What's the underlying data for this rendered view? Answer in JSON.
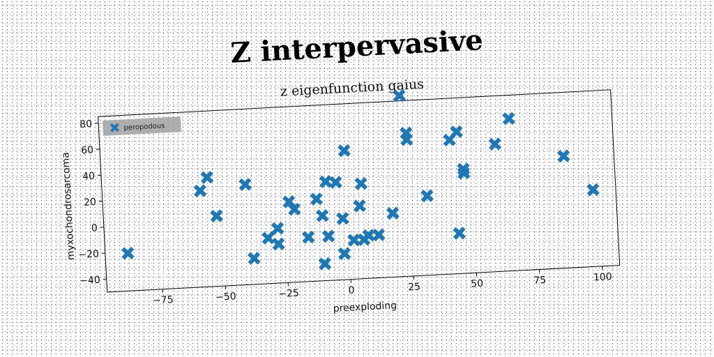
{
  "chart_data": {
    "type": "scatter",
    "title": "Z interpervasive",
    "subtitle": "z eigenfunction gaius",
    "xlabel": "preexploding",
    "ylabel": "myxochondrosarcoma",
    "xlim": [
      -97,
      107
    ],
    "ylim": [
      -50,
      85
    ],
    "xticks": [
      -75,
      -50,
      -25,
      0,
      25,
      50,
      75,
      100
    ],
    "yticks": [
      -40,
      -20,
      0,
      20,
      40,
      60,
      80
    ],
    "grid": false,
    "legend_position": "top-left",
    "color": "#1f77b4",
    "marker": "x-cross",
    "series": [
      {
        "name": "peropodous",
        "points": [
          [
            -88,
            -21
          ],
          [
            -58,
            24
          ],
          [
            -55,
            34
          ],
          [
            -52,
            4
          ],
          [
            -40,
            27
          ],
          [
            -38,
            -30
          ],
          [
            -32,
            -15
          ],
          [
            -28,
            -8
          ],
          [
            -28,
            -20
          ],
          [
            -23,
            12
          ],
          [
            -21,
            6
          ],
          [
            -16,
            -16
          ],
          [
            -12,
            13
          ],
          [
            -10,
            0
          ],
          [
            -10,
            -37
          ],
          [
            -8,
            26
          ],
          [
            -8,
            -16
          ],
          [
            -4,
            25
          ],
          [
            -2,
            -3
          ],
          [
            -2,
            -30
          ],
          [
            0,
            49
          ],
          [
            2,
            -20
          ],
          [
            5,
            6
          ],
          [
            6,
            -20
          ],
          [
            6,
            23
          ],
          [
            8,
            -17
          ],
          [
            12,
            -17
          ],
          [
            18,
            -1
          ],
          [
            23,
            89
          ],
          [
            25,
            60
          ],
          [
            25,
            55
          ],
          [
            32,
            11
          ],
          [
            42,
            53
          ],
          [
            44,
            -19
          ],
          [
            45,
            59
          ],
          [
            47,
            30
          ],
          [
            47,
            27
          ],
          [
            60,
            48
          ],
          [
            66,
            67
          ],
          [
            87,
            36
          ],
          [
            98,
            9
          ]
        ]
      }
    ]
  }
}
